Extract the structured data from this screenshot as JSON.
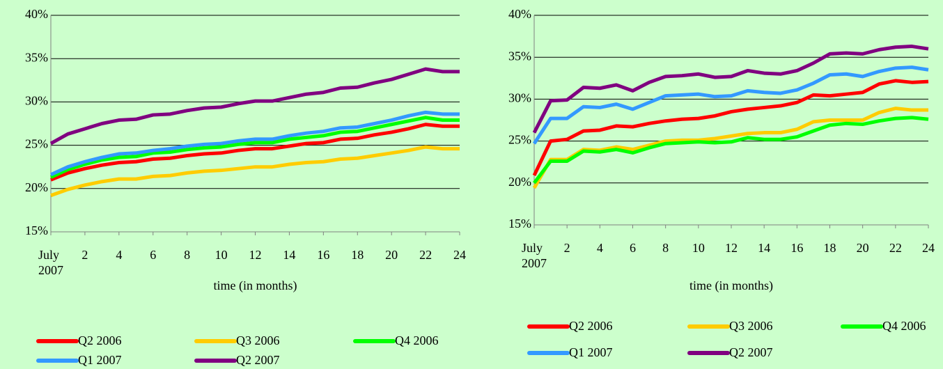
{
  "chart_data": [
    {
      "type": "line",
      "x_label": "time (in months)",
      "x": [
        0,
        1,
        2,
        3,
        4,
        5,
        6,
        7,
        8,
        9,
        10,
        11,
        12,
        13,
        14,
        15,
        16,
        17,
        18,
        19,
        20,
        21,
        22,
        23,
        24
      ],
      "xlim": [
        0,
        24
      ],
      "xticks": [
        {
          "value": 0,
          "label": "July 2007"
        },
        2,
        4,
        6,
        8,
        10,
        12,
        14,
        16,
        18,
        20,
        22,
        24
      ],
      "ylim": [
        15,
        40
      ],
      "yticks": [
        {
          "value": 15,
          "label": "15%"
        },
        {
          "value": 20,
          "label": "20%"
        },
        {
          "value": 25,
          "label": "25%"
        },
        {
          "value": 30,
          "label": "30%"
        },
        {
          "value": 35,
          "label": "35%"
        },
        {
          "value": 40,
          "label": "40%"
        }
      ],
      "grid": true,
      "series": [
        {
          "name": "Q2 2006",
          "color": "#ff0000",
          "values": [
            21.0,
            21.8,
            22.3,
            22.7,
            23.0,
            23.1,
            23.4,
            23.5,
            23.8,
            24.0,
            24.1,
            24.4,
            24.6,
            24.6,
            24.9,
            25.2,
            25.3,
            25.7,
            25.8,
            26.2,
            26.5,
            26.9,
            27.4,
            27.2,
            27.2
          ]
        },
        {
          "name": "Q3 2006",
          "color": "#ffcc00",
          "values": [
            19.2,
            19.9,
            20.4,
            20.8,
            21.1,
            21.1,
            21.4,
            21.5,
            21.8,
            22.0,
            22.1,
            22.3,
            22.5,
            22.5,
            22.8,
            23.0,
            23.1,
            23.4,
            23.5,
            23.8,
            24.1,
            24.4,
            24.8,
            24.6,
            24.6
          ]
        },
        {
          "name": "Q4 2006",
          "color": "#00ff00",
          "values": [
            21.3,
            22.2,
            22.8,
            23.3,
            23.6,
            23.7,
            24.1,
            24.2,
            24.5,
            24.7,
            24.8,
            25.1,
            25.3,
            25.3,
            25.7,
            25.9,
            26.1,
            26.5,
            26.6,
            27.0,
            27.4,
            27.8,
            28.2,
            27.9,
            27.9
          ]
        },
        {
          "name": "Q1 2007",
          "color": "#3399ff",
          "values": [
            21.6,
            22.5,
            23.1,
            23.6,
            24.0,
            24.1,
            24.4,
            24.6,
            24.9,
            25.1,
            25.2,
            25.5,
            25.7,
            25.7,
            26.1,
            26.4,
            26.6,
            27.0,
            27.1,
            27.5,
            27.9,
            28.4,
            28.8,
            28.6,
            28.6
          ]
        },
        {
          "name": "Q2 2007",
          "color": "#800080",
          "values": [
            25.2,
            26.3,
            26.9,
            27.5,
            27.9,
            28.0,
            28.5,
            28.6,
            29.0,
            29.3,
            29.4,
            29.8,
            30.1,
            30.1,
            30.5,
            30.9,
            31.1,
            31.6,
            31.7,
            32.2,
            32.6,
            33.2,
            33.8,
            33.5,
            33.5
          ]
        }
      ]
    },
    {
      "type": "line",
      "x_label": "time (in months)",
      "x": [
        0,
        1,
        2,
        3,
        4,
        5,
        6,
        7,
        8,
        9,
        10,
        11,
        12,
        13,
        14,
        15,
        16,
        17,
        18,
        19,
        20,
        21,
        22,
        23,
        24
      ],
      "xlim": [
        0,
        24
      ],
      "xticks": [
        {
          "value": 0,
          "label": "July 2007"
        },
        2,
        4,
        6,
        8,
        10,
        12,
        14,
        16,
        18,
        20,
        22,
        24
      ],
      "ylim": [
        15,
        40
      ],
      "yticks": [
        {
          "value": 15,
          "label": "15%"
        },
        {
          "value": 20,
          "label": "20%"
        },
        {
          "value": 25,
          "label": "25%"
        },
        {
          "value": 30,
          "label": "30%"
        },
        {
          "value": 35,
          "label": "35%"
        },
        {
          "value": 40,
          "label": "40%"
        }
      ],
      "grid": true,
      "series": [
        {
          "name": "Q2 2006",
          "color": "#ff0000",
          "values": [
            20.9,
            25.0,
            25.2,
            26.2,
            26.3,
            26.8,
            26.7,
            27.1,
            27.4,
            27.6,
            27.7,
            28.0,
            28.5,
            28.8,
            29.0,
            29.2,
            29.6,
            30.5,
            30.4,
            30.6,
            30.8,
            31.8,
            32.2,
            32.0,
            32.1
          ]
        },
        {
          "name": "Q3 2006",
          "color": "#ffcc00",
          "values": [
            19.4,
            22.8,
            22.8,
            24.0,
            23.9,
            24.3,
            24.0,
            24.5,
            25.0,
            25.1,
            25.1,
            25.3,
            25.6,
            25.9,
            26.0,
            26.0,
            26.4,
            27.3,
            27.5,
            27.5,
            27.5,
            28.4,
            28.9,
            28.7,
            28.7
          ]
        },
        {
          "name": "Q4 2006",
          "color": "#00ff00",
          "values": [
            20.0,
            22.6,
            22.6,
            23.8,
            23.7,
            24.0,
            23.6,
            24.2,
            24.7,
            24.8,
            24.9,
            24.8,
            24.9,
            25.4,
            25.2,
            25.2,
            25.5,
            26.2,
            26.9,
            27.1,
            27.0,
            27.4,
            27.7,
            27.8,
            27.6
          ]
        },
        {
          "name": "Q1 2007",
          "color": "#3399ff",
          "values": [
            24.7,
            27.7,
            27.7,
            29.1,
            29.0,
            29.4,
            28.8,
            29.6,
            30.4,
            30.5,
            30.6,
            30.3,
            30.4,
            31.0,
            30.8,
            30.7,
            31.1,
            31.9,
            32.9,
            33.0,
            32.7,
            33.3,
            33.7,
            33.8,
            33.5
          ]
        },
        {
          "name": "Q2 2007",
          "color": "#800080",
          "values": [
            26.0,
            29.8,
            29.9,
            31.4,
            31.3,
            31.7,
            31.0,
            32.0,
            32.7,
            32.8,
            33.0,
            32.6,
            32.7,
            33.4,
            33.1,
            33.0,
            33.4,
            34.3,
            35.4,
            35.5,
            35.4,
            35.9,
            36.2,
            36.3,
            36.0
          ]
        }
      ]
    }
  ]
}
